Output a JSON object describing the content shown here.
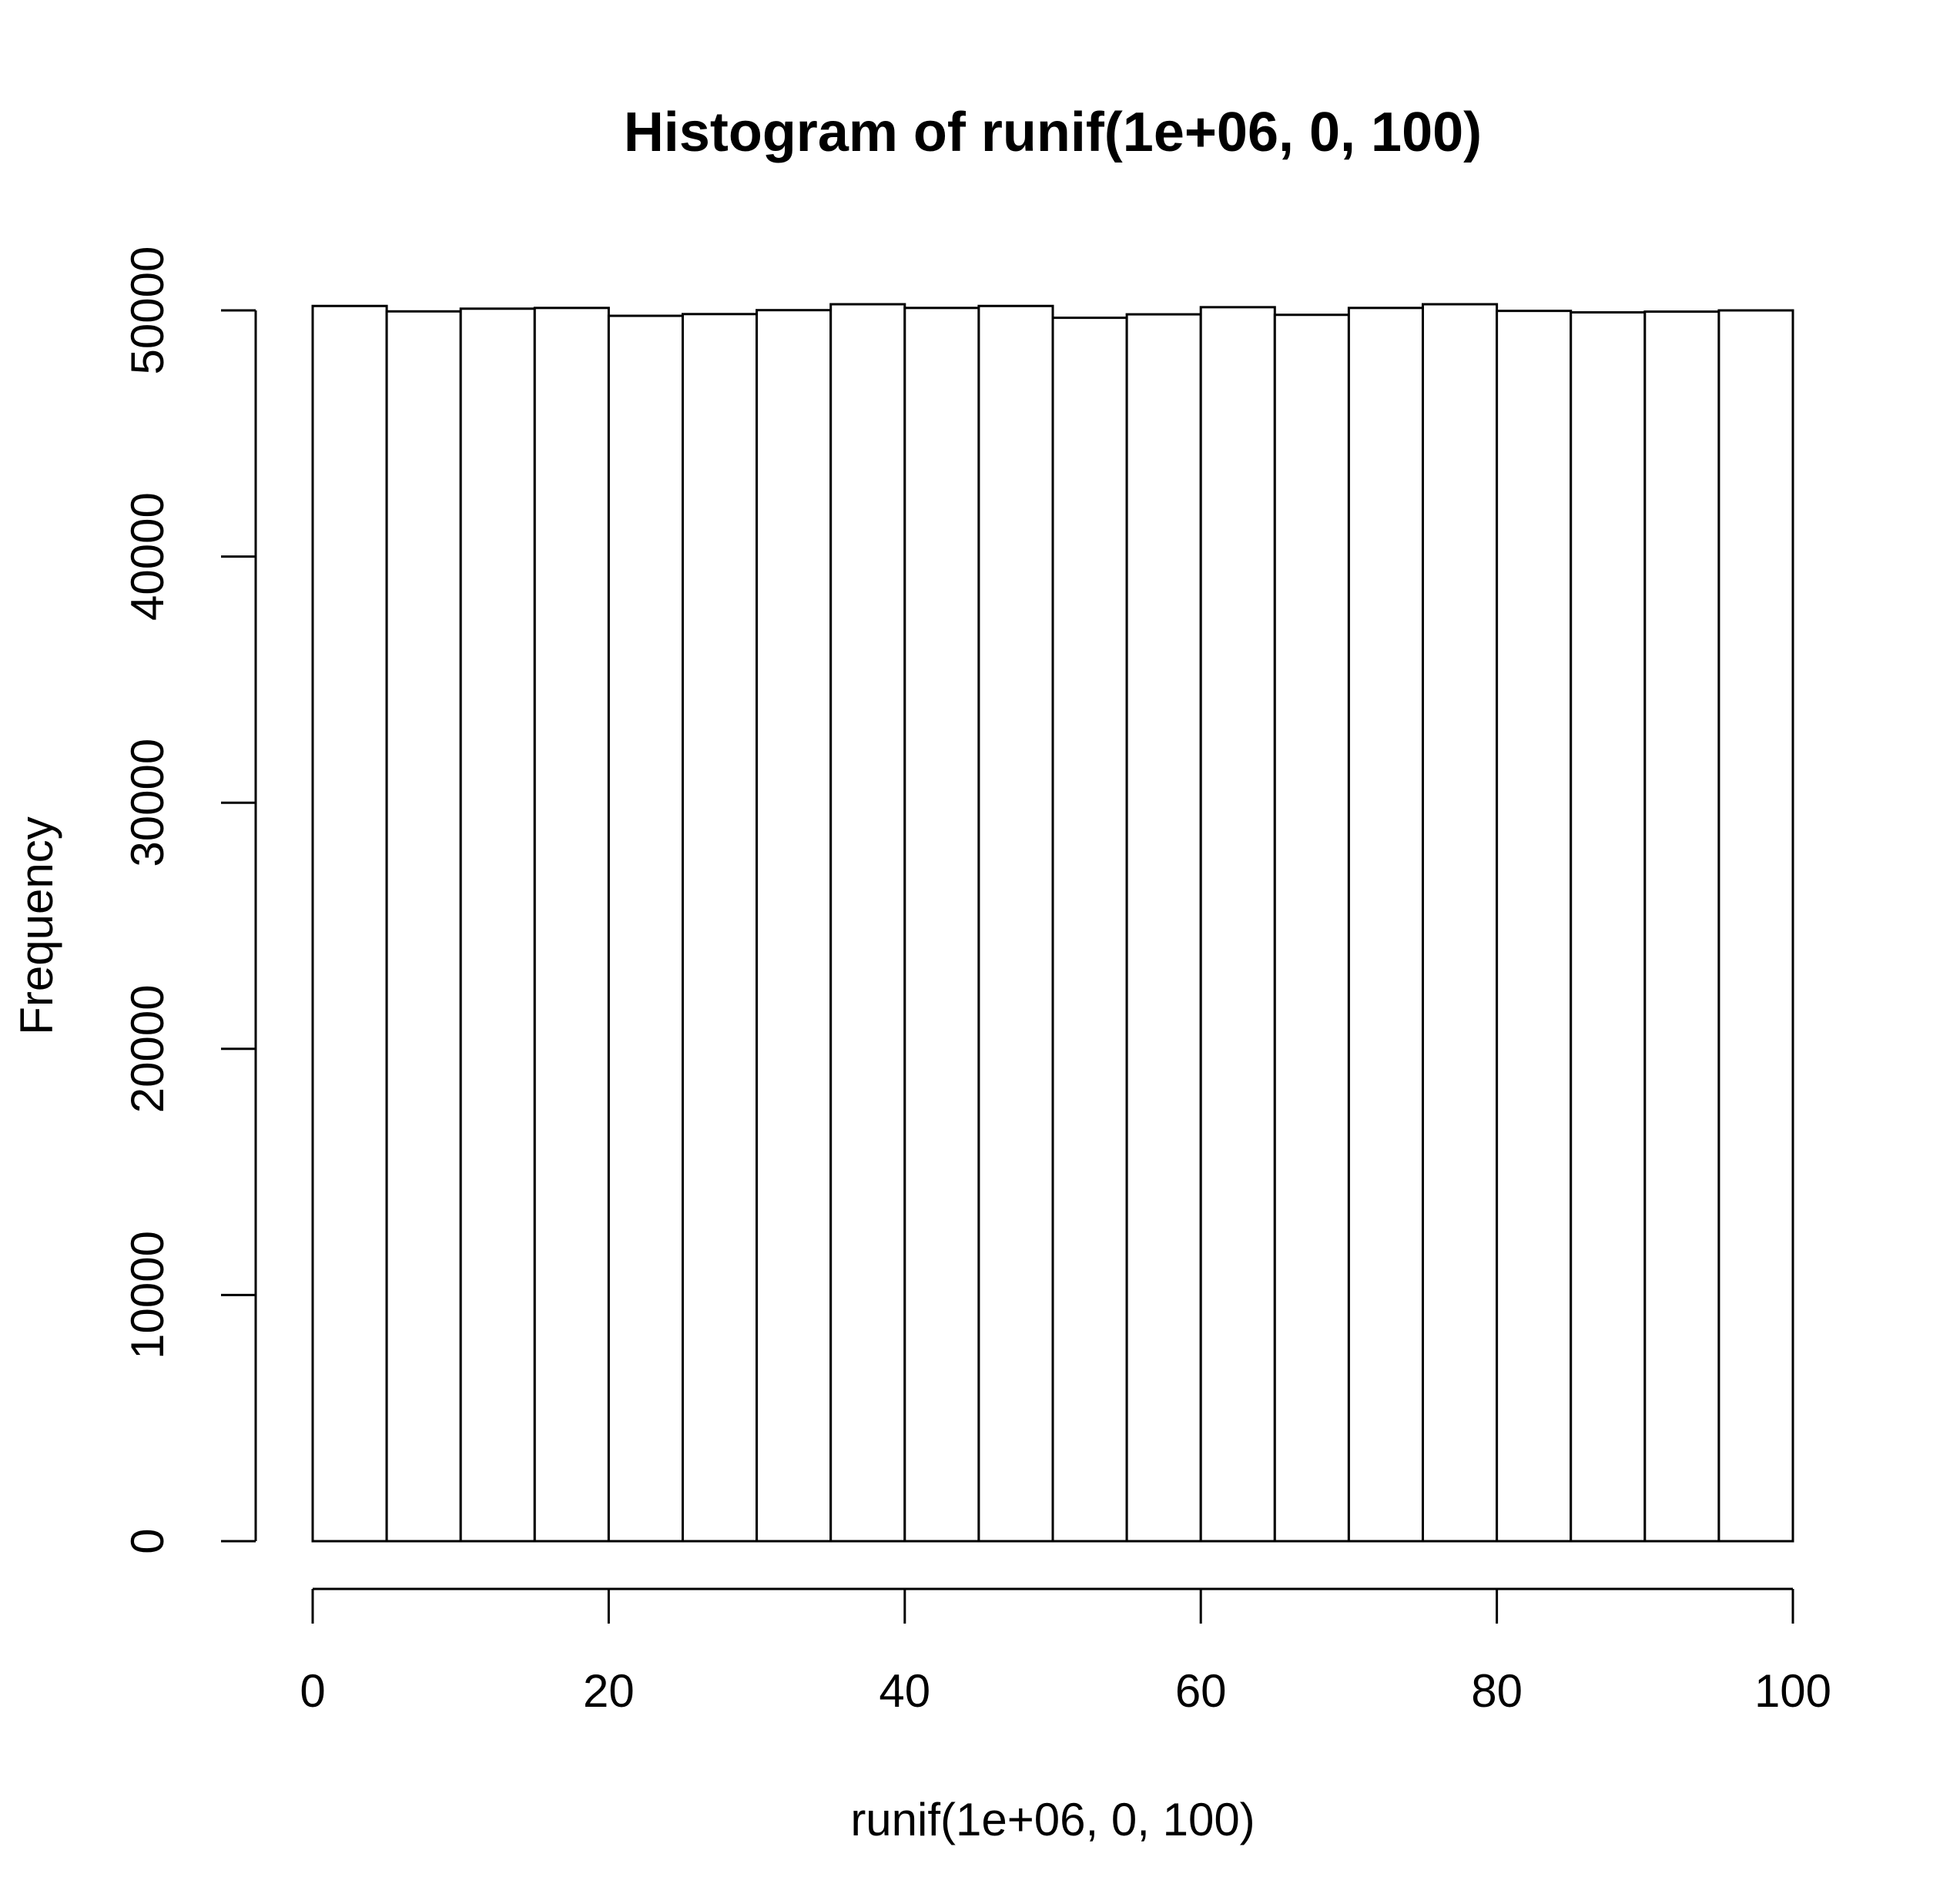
{
  "chart_data": {
    "type": "bar",
    "title": "Histogram of runif(1e+06, 0, 100)",
    "xlabel": "runif(1e+06, 0, 100)",
    "ylabel": "Frequency",
    "bins": [
      {
        "x0": 0,
        "x1": 5,
        "value": 50180
      },
      {
        "x0": 5,
        "x1": 10,
        "value": 49960
      },
      {
        "x0": 10,
        "x1": 15,
        "value": 50070
      },
      {
        "x0": 15,
        "x1": 20,
        "value": 50100
      },
      {
        "x0": 20,
        "x1": 25,
        "value": 49780
      },
      {
        "x0": 25,
        "x1": 30,
        "value": 49850
      },
      {
        "x0": 30,
        "x1": 35,
        "value": 50010
      },
      {
        "x0": 35,
        "x1": 40,
        "value": 50250
      },
      {
        "x0": 40,
        "x1": 45,
        "value": 50100
      },
      {
        "x0": 45,
        "x1": 50,
        "value": 50180
      },
      {
        "x0": 50,
        "x1": 55,
        "value": 49700
      },
      {
        "x0": 55,
        "x1": 60,
        "value": 49840
      },
      {
        "x0": 60,
        "x1": 65,
        "value": 50130
      },
      {
        "x0": 65,
        "x1": 70,
        "value": 49820
      },
      {
        "x0": 70,
        "x1": 75,
        "value": 50100
      },
      {
        "x0": 75,
        "x1": 80,
        "value": 50250
      },
      {
        "x0": 80,
        "x1": 85,
        "value": 49980
      },
      {
        "x0": 85,
        "x1": 90,
        "value": 49920
      },
      {
        "x0": 90,
        "x1": 95,
        "value": 49950
      },
      {
        "x0": 95,
        "x1": 100,
        "value": 50000
      }
    ],
    "xlim": [
      0,
      100
    ],
    "ylim": [
      0,
      50000
    ],
    "x_ticks": [
      "0",
      "20",
      "40",
      "60",
      "80",
      "100"
    ],
    "y_ticks": [
      "0",
      "10000",
      "20000",
      "30000",
      "40000",
      "50000"
    ],
    "grid": false,
    "legend": "none",
    "colors": {
      "bar_fill": "#ffffff",
      "bar_stroke": "#000000",
      "axis": "#000000"
    }
  }
}
